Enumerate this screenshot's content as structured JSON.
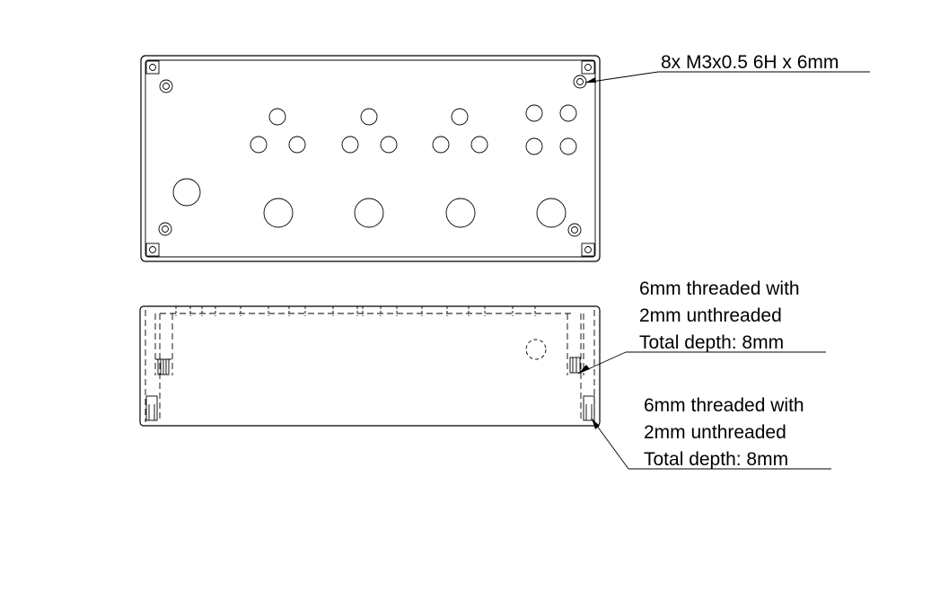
{
  "callouts": {
    "top_tapped_holes": "8x  M3x0.5 6H x 6mm",
    "side_upper": {
      "line1": "6mm threaded with",
      "line2": "2mm unthreaded",
      "line3": "Total depth: 8mm"
    },
    "side_lower": {
      "line1": "6mm threaded with",
      "line2": "2mm unthreaded",
      "line3": "Total depth: 8mm"
    }
  },
  "views": {
    "top_view": {
      "hole_rows": 2,
      "small_hole_groups": 4,
      "large_holes": 5,
      "corner_tapped_holes": 8
    },
    "side_view": {
      "hidden_features": "dashed"
    }
  }
}
